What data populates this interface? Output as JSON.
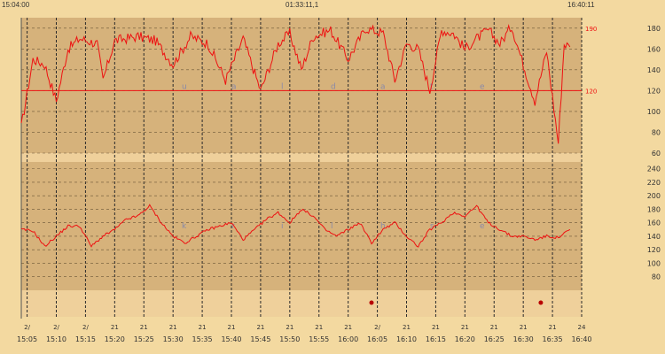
{
  "header": {
    "start_time": "15:04:00",
    "center_time": "01:33:11,1",
    "end_time": "16:40:11"
  },
  "colors": {
    "background": "#f3d9a0",
    "plot_band": "#d6b27b",
    "gap_band": "#efd09b",
    "line": "#ee1111",
    "grid": "#2a2a2a",
    "text": "#333333",
    "watermark": "#8a8aa8"
  },
  "chart_data": [
    {
      "type": "line",
      "panel": "top",
      "series_color": "#ee1111",
      "y_ticks": [
        "180",
        "160",
        "140",
        "120",
        "100",
        "80",
        "60"
      ],
      "ylim": [
        60,
        190
      ],
      "threshold": {
        "value": 120,
        "label": "120",
        "top_label": "190",
        "color": "#ee1111"
      },
      "watermark": [
        "u",
        "a",
        "l",
        "d",
        "a",
        "t",
        "e"
      ],
      "x_minutes": [
        0,
        2,
        4,
        6,
        8,
        10,
        13,
        14,
        16,
        18,
        20,
        23,
        26,
        29,
        32,
        35,
        38,
        41,
        44,
        46,
        48,
        50,
        53,
        56,
        59,
        62,
        64,
        66,
        68,
        70,
        72,
        74,
        76,
        78,
        80,
        82,
        84,
        86,
        88,
        90,
        92,
        93,
        94
      ],
      "values": [
        85,
        150,
        145,
        110,
        160,
        170,
        165,
        130,
        168,
        170,
        172,
        168,
        145,
        172,
        165,
        130,
        170,
        120,
        165,
        175,
        140,
        172,
        178,
        150,
        180,
        175,
        130,
        165,
        160,
        120,
        178,
        175,
        160,
        170,
        178,
        165,
        182,
        145,
        110,
        158,
        70,
        165,
        162
      ]
    },
    {
      "type": "line",
      "panel": "bottom",
      "series_color": "#ee1111",
      "y_ticks": [
        "240",
        "220",
        "200",
        "180",
        "160",
        "140",
        "120",
        "100",
        "80"
      ],
      "ylim": [
        60,
        250
      ],
      "watermark": [
        "k",
        "r",
        "i",
        "l",
        "h",
        "s",
        "e"
      ],
      "x_minutes": [
        0,
        2,
        4,
        6,
        8,
        10,
        12,
        14,
        16,
        18,
        20,
        22,
        24,
        26,
        28,
        30,
        32,
        34,
        36,
        38,
        40,
        42,
        44,
        46,
        48,
        50,
        52,
        54,
        56,
        58,
        60,
        62,
        64,
        66,
        68,
        70,
        72,
        74,
        76,
        78,
        80,
        82,
        84,
        86,
        88,
        90,
        92,
        94
      ],
      "values": [
        150,
        148,
        125,
        140,
        155,
        155,
        125,
        140,
        150,
        165,
        170,
        185,
        160,
        140,
        130,
        140,
        150,
        155,
        160,
        135,
        150,
        165,
        175,
        160,
        180,
        170,
        150,
        140,
        150,
        160,
        130,
        150,
        160,
        140,
        125,
        150,
        160,
        175,
        170,
        185,
        160,
        150,
        140,
        140,
        135,
        140,
        138,
        150
      ]
    }
  ],
  "markers": [
    {
      "minute": 60,
      "color": "#b80000"
    },
    {
      "minute": 89,
      "color": "#b80000"
    }
  ],
  "x_axis": {
    "ticks": [
      {
        "top": "2/",
        "time": "15:05"
      },
      {
        "top": "2/",
        "time": "15:10"
      },
      {
        "top": "2/",
        "time": "15:15"
      },
      {
        "top": "21",
        "time": "15:20"
      },
      {
        "top": "21",
        "time": "15:25"
      },
      {
        "top": "21",
        "time": "15:30"
      },
      {
        "top": "21",
        "time": "15:35"
      },
      {
        "top": "21",
        "time": "15:40"
      },
      {
        "top": "21",
        "time": "15:45"
      },
      {
        "top": "21",
        "time": "15:50"
      },
      {
        "top": "21",
        "time": "15:55"
      },
      {
        "top": "21",
        "time": "16:00"
      },
      {
        "top": "2/",
        "time": "16:05"
      },
      {
        "top": "21",
        "time": "16:10"
      },
      {
        "top": "21",
        "time": "16:15"
      },
      {
        "top": "21",
        "time": "16:20"
      },
      {
        "top": "21",
        "time": "16:25"
      },
      {
        "top": "21",
        "time": "16:30"
      },
      {
        "top": "21",
        "time": "16:35"
      },
      {
        "top": "24",
        "time": "16:40"
      }
    ]
  }
}
